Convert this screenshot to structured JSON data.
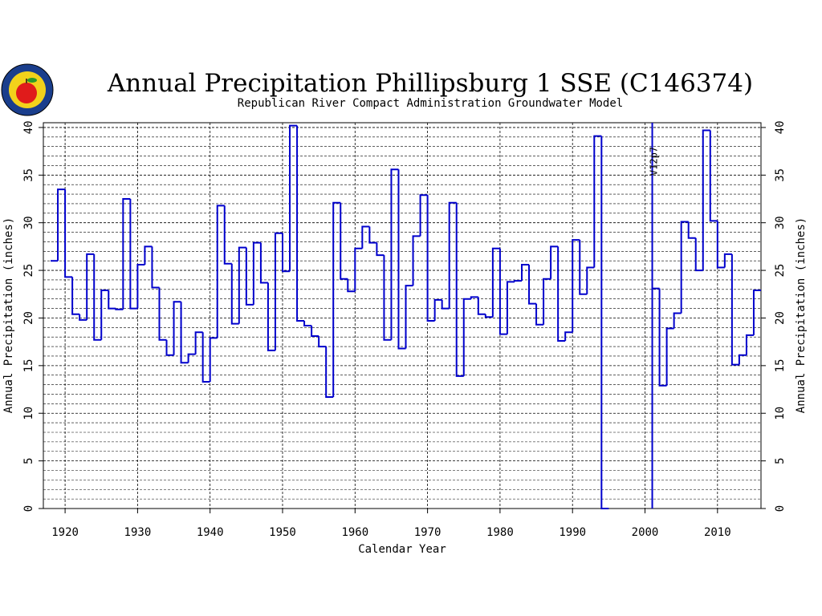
{
  "chart_data": {
    "type": "line",
    "step": true,
    "title": "Annual Precipitation Phillipsburg 1 SSE (C146374)",
    "subtitle": "Republican River Compact Administration Groundwater Model",
    "xlabel": "Calendar Year",
    "ylabel": "Annual Precipitation (inches)",
    "ylabel_right": "Annual Precipitation (inches)",
    "xlim": [
      1917,
      2016
    ],
    "ylim": [
      0,
      40.5
    ],
    "x_ticks": [
      "1920",
      "1930",
      "1940",
      "1950",
      "1960",
      "1970",
      "1980",
      "1990",
      "2000",
      "2010"
    ],
    "y_ticks": [
      "0",
      "5",
      "10",
      "15",
      "20",
      "25",
      "30",
      "35",
      "40"
    ],
    "grid": true,
    "line_color": "#0000cc",
    "annotations": [
      {
        "year": 2001,
        "text": "V12p7"
      }
    ],
    "x": [
      1918,
      1919,
      1920,
      1921,
      1922,
      1923,
      1924,
      1925,
      1926,
      1927,
      1928,
      1929,
      1930,
      1931,
      1932,
      1933,
      1934,
      1935,
      1936,
      1937,
      1938,
      1939,
      1940,
      1941,
      1942,
      1943,
      1944,
      1945,
      1946,
      1947,
      1948,
      1949,
      1950,
      1951,
      1952,
      1953,
      1954,
      1955,
      1956,
      1957,
      1958,
      1959,
      1960,
      1961,
      1962,
      1963,
      1964,
      1965,
      1966,
      1967,
      1968,
      1969,
      1970,
      1971,
      1972,
      1973,
      1974,
      1975,
      1976,
      1977,
      1978,
      1979,
      1980,
      1981,
      1982,
      1983,
      1984,
      1985,
      1986,
      1987,
      1988,
      1989,
      1990,
      1991,
      1992,
      1993,
      1994,
      1995,
      1996,
      1997,
      1998,
      1999,
      2000,
      2001,
      2002,
      2003,
      2004,
      2005,
      2006,
      2007,
      2008,
      2009,
      2010,
      2011,
      2012,
      2013,
      2014,
      2015
    ],
    "values": [
      26.0,
      33.5,
      24.3,
      20.4,
      19.8,
      26.7,
      17.7,
      22.9,
      21.0,
      20.9,
      32.5,
      21.0,
      25.6,
      27.5,
      23.2,
      17.7,
      16.1,
      21.7,
      15.3,
      16.2,
      18.5,
      13.3,
      17.9,
      31.8,
      25.7,
      19.4,
      27.4,
      21.4,
      27.9,
      23.7,
      16.6,
      28.9,
      24.9,
      40.2,
      19.7,
      19.2,
      18.1,
      17.0,
      11.7,
      32.1,
      24.1,
      22.8,
      27.3,
      29.6,
      27.9,
      26.6,
      17.7,
      35.6,
      16.8,
      23.4,
      28.6,
      32.9,
      19.7,
      21.9,
      21.0,
      32.1,
      13.9,
      22.0,
      22.2,
      20.4,
      20.1,
      27.3,
      18.3,
      23.8,
      23.9,
      25.6,
      21.5,
      19.3,
      24.1,
      27.5,
      17.6,
      18.5,
      28.2,
      22.5,
      25.3,
      39.1,
      0,
      null,
      null,
      null,
      null,
      null,
      null,
      23.1,
      12.9,
      18.9,
      20.5,
      30.1,
      28.4,
      25.0,
      39.7,
      30.2,
      25.3,
      26.7,
      15.1,
      16.1,
      18.2,
      22.9
    ]
  }
}
